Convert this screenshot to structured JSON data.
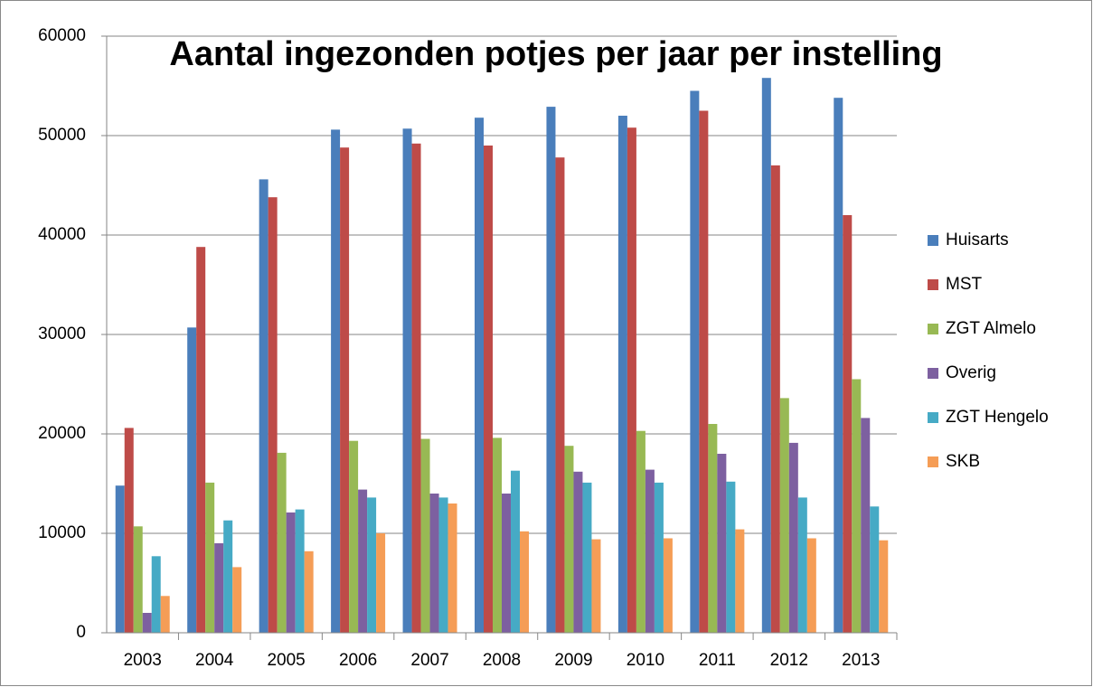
{
  "chart_data": {
    "type": "bar",
    "title": "Aantal ingezonden potjes per jaar per instelling",
    "categories": [
      "2003",
      "2004",
      "2005",
      "2006",
      "2007",
      "2008",
      "2009",
      "2010",
      "2011",
      "2012",
      "2013"
    ],
    "series": [
      {
        "name": "Huisarts",
        "color": "#4a7ebb",
        "values": [
          14800,
          30700,
          45600,
          50600,
          50700,
          51800,
          52900,
          52000,
          54500,
          55800,
          53800
        ]
      },
      {
        "name": "MST",
        "color": "#be4b48",
        "values": [
          20600,
          38800,
          43800,
          48800,
          49200,
          49000,
          47800,
          50800,
          52500,
          47000,
          42000
        ]
      },
      {
        "name": "ZGT Almelo",
        "color": "#98b954",
        "values": [
          10700,
          15100,
          18100,
          19300,
          19500,
          19600,
          18800,
          20300,
          21000,
          23600,
          25500
        ]
      },
      {
        "name": "Overig",
        "color": "#7d60a0",
        "values": [
          2000,
          9000,
          12100,
          14400,
          14000,
          14000,
          16200,
          16400,
          18000,
          19100,
          21600
        ]
      },
      {
        "name": "ZGT Hengelo",
        "color": "#46aac5",
        "values": [
          7700,
          11300,
          12400,
          13600,
          13600,
          16300,
          15100,
          15100,
          15200,
          13600,
          12700
        ]
      },
      {
        "name": "SKB",
        "color": "#f59d56",
        "values": [
          3700,
          6600,
          8200,
          10000,
          13000,
          10200,
          9400,
          9500,
          10400,
          9500,
          9300
        ]
      }
    ],
    "ylim": [
      0,
      60000
    ],
    "yticks": [
      0,
      10000,
      20000,
      30000,
      40000,
      50000,
      60000
    ],
    "grid": true,
    "legend": "right"
  }
}
